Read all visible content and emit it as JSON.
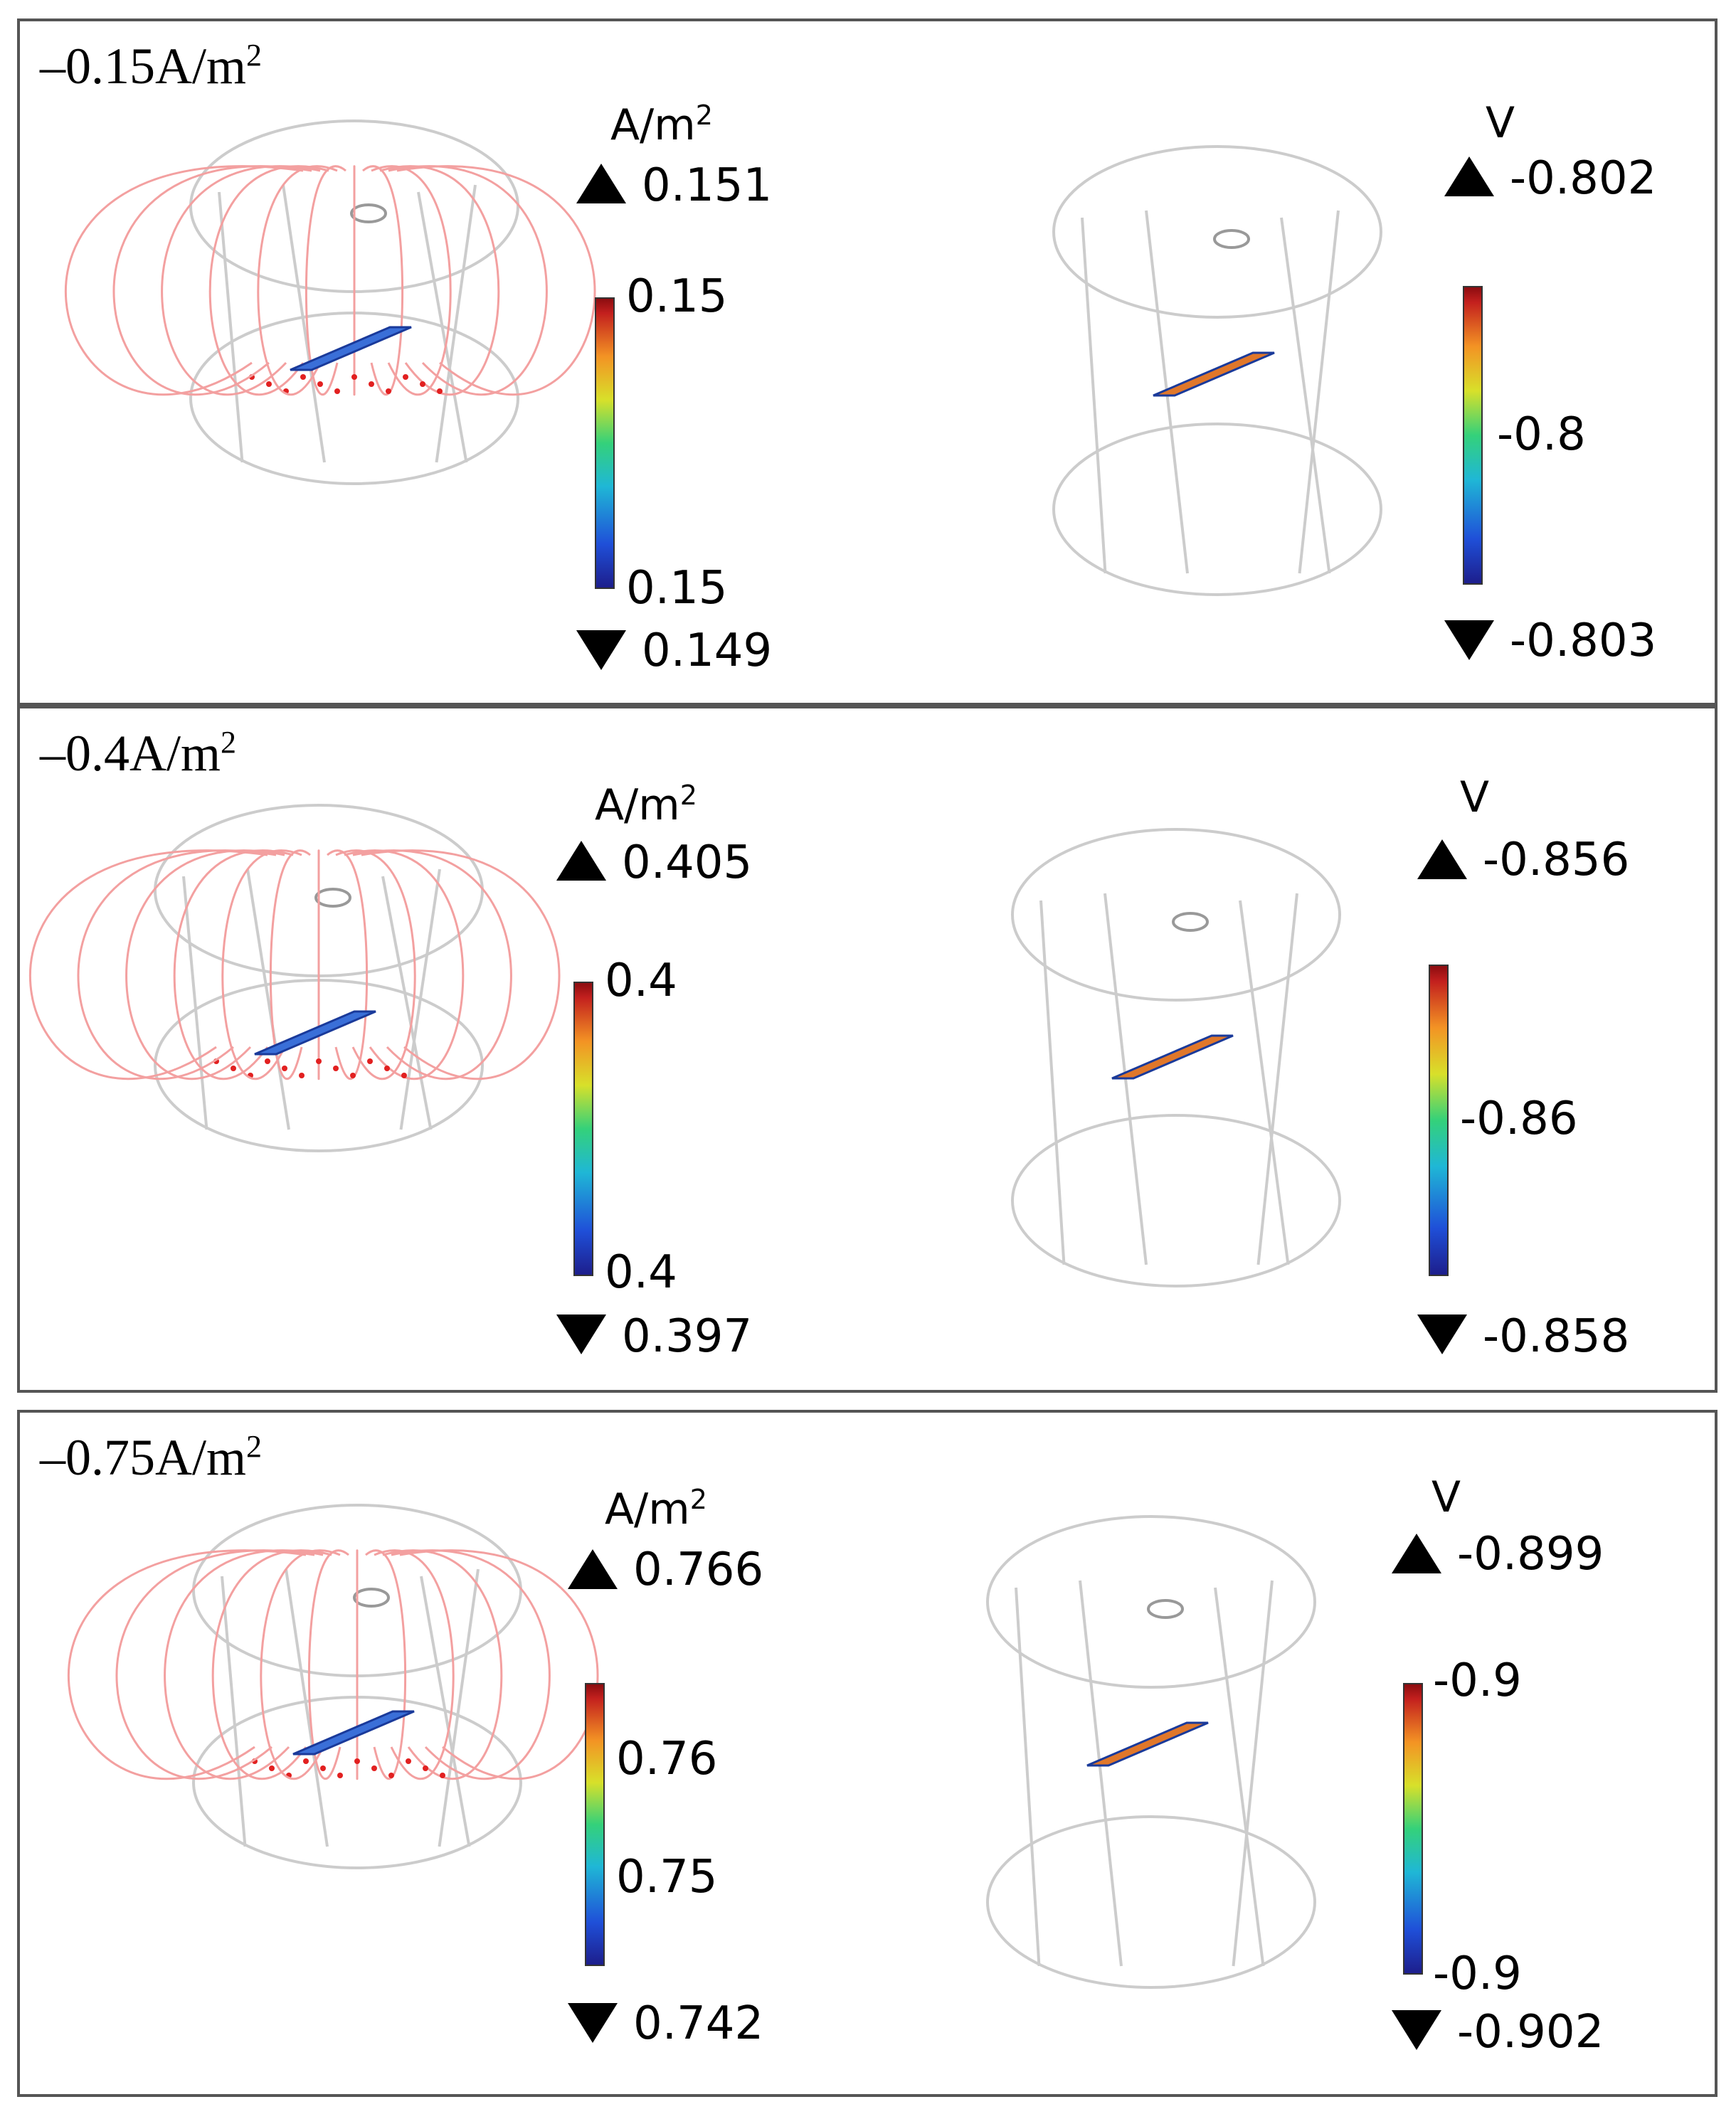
{
  "panels": [
    {
      "label": "–0.15A/m",
      "label_sup": "2",
      "current": {
        "unit": "A/m",
        "unit_sup": "2",
        "max_label": "0.151",
        "min_label": "0.149",
        "ticks": [
          "0.15",
          "0.15"
        ]
      },
      "potential": {
        "unit": "V",
        "max_label": "-0.802",
        "min_label": "-0.803",
        "ticks": [
          "-0.8"
        ]
      }
    },
    {
      "label": "–0.4A/m",
      "label_sup": "2",
      "current": {
        "unit": "A/m",
        "unit_sup": "2",
        "max_label": "0.405",
        "min_label": "0.397",
        "ticks": [
          "0.4",
          "0.4"
        ]
      },
      "potential": {
        "unit": "V",
        "max_label": "-0.856",
        "min_label": "-0.858",
        "ticks": [
          "-0.86"
        ]
      }
    },
    {
      "label": "–0.75A/m",
      "label_sup": "2",
      "current": {
        "unit": "A/m",
        "unit_sup": "2",
        "max_label": "0.766",
        "min_label": "0.742",
        "ticks": [
          "0.76",
          "0.75"
        ]
      },
      "potential": {
        "unit": "V",
        "max_label": "-0.899",
        "min_label": "-0.902",
        "ticks": [
          "-0.9",
          "-0.9"
        ]
      }
    }
  ],
  "colors": {
    "frame": "#555555",
    "wire": "#cccccc",
    "streamline": "#f3a0a0",
    "arrow": "#e22020"
  },
  "icons": {
    "max_marker": "triangle-up-icon",
    "min_marker": "triangle-down-icon"
  }
}
